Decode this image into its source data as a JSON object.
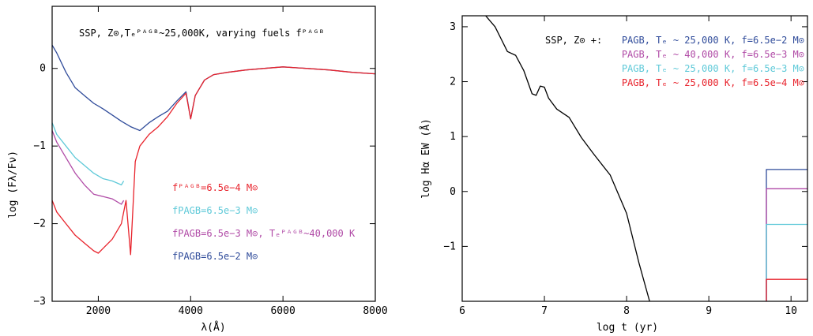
{
  "colors": {
    "red": "#e8232c",
    "cyan": "#5ec9d8",
    "purple": "#b04aa6",
    "blue": "#2f4b9a",
    "black": "#000000"
  },
  "chart_data": [
    {
      "type": "line",
      "title": "SSP, Z⊙,Tₑᴾᴬᴳᴮ~25,000K, varying fuels fᴾᴬᴳᴮ",
      "xlabel": "λ(Å)",
      "ylabel": "log (Fλ/Fν)",
      "xlim": [
        1000,
        8000
      ],
      "ylim": [
        -3,
        0.8
      ],
      "x_ticks": [
        2000,
        4000,
        6000,
        8000
      ],
      "x_tick_labels": [
        "2000",
        "4000",
        "6000",
        "8000"
      ],
      "y_ticks": [
        -3,
        -2,
        -1,
        0
      ],
      "y_tick_labels": [
        "−3",
        "−2",
        "−1",
        "0"
      ],
      "legend": [
        {
          "text": "fᴾᴬᴳᴮ=6.5e−4 M⊙",
          "color": "red"
        },
        {
          "text": "fPAGB=6.5e−3 M⊙",
          "color": "cyan"
        },
        {
          "text": "fPAGB=6.5e−3 M⊙, Tₑᴾᴬᴳᴮ~40,000 K",
          "color": "purple"
        },
        {
          "text": "fPAGB=6.5e−2 M⊙",
          "color": "blue"
        }
      ],
      "series": [
        {
          "color": "blue",
          "x": [
            1000,
            1100,
            1300,
            1500,
            1700,
            1900,
            2100,
            2300,
            2500,
            2700,
            2900,
            3100,
            3300,
            3500,
            3700,
            3900,
            4000,
            4100,
            4300,
            4500,
            4800,
            5200,
            5600,
            6000,
            6500,
            7000,
            7500,
            8000
          ],
          "y": [
            0.3,
            0.2,
            -0.05,
            -0.25,
            -0.35,
            -0.45,
            -0.52,
            -0.6,
            -0.68,
            -0.75,
            -0.8,
            -0.7,
            -0.62,
            -0.55,
            -0.42,
            -0.3,
            -0.65,
            -0.35,
            -0.15,
            -0.08,
            -0.05,
            -0.02,
            0.0,
            0.02,
            0.0,
            -0.02,
            -0.05,
            -0.07
          ]
        },
        {
          "color": "cyan",
          "x": [
            1000,
            1100,
            1300,
            1500,
            1700,
            1900,
            2100,
            2300,
            2500,
            2550
          ],
          "y": [
            -0.7,
            -0.85,
            -1.0,
            -1.15,
            -1.25,
            -1.35,
            -1.42,
            -1.45,
            -1.5,
            -1.45
          ]
        },
        {
          "color": "purple",
          "x": [
            1000,
            1100,
            1300,
            1500,
            1700,
            1900,
            2100,
            2300,
            2500,
            2550
          ],
          "y": [
            -0.8,
            -0.95,
            -1.15,
            -1.35,
            -1.5,
            -1.62,
            -1.65,
            -1.68,
            -1.75,
            -1.7
          ]
        },
        {
          "color": "red",
          "x": [
            1000,
            1100,
            1300,
            1500,
            1700,
            1900,
            2000,
            2100,
            2300,
            2500,
            2600,
            2700,
            2800,
            2900,
            3100,
            3300,
            3500,
            3700,
            3900,
            4000,
            4100,
            4300,
            4500,
            4800,
            5200,
            5600,
            6000,
            6500,
            7000,
            7500,
            8000
          ],
          "y": [
            -1.7,
            -1.85,
            -2.0,
            -2.15,
            -2.25,
            -2.35,
            -2.38,
            -2.32,
            -2.2,
            -2.0,
            -1.7,
            -2.4,
            -1.2,
            -1.0,
            -0.85,
            -0.75,
            -0.62,
            -0.45,
            -0.32,
            -0.65,
            -0.35,
            -0.15,
            -0.08,
            -0.05,
            -0.02,
            0.0,
            0.02,
            0.0,
            -0.02,
            -0.05,
            -0.07
          ]
        }
      ]
    },
    {
      "type": "line",
      "xlabel": "log t (yr)",
      "ylabel": "log Hα EW (Å)",
      "xlim": [
        6,
        10.2
      ],
      "ylim": [
        -2,
        3.2
      ],
      "x_ticks": [
        6,
        7,
        8,
        9,
        10
      ],
      "x_tick_labels": [
        "6",
        "7",
        "8",
        "9",
        "10"
      ],
      "y_ticks": [
        -1,
        0,
        1,
        2,
        3
      ],
      "y_tick_labels": [
        "−1",
        "0",
        "1",
        "2",
        "3"
      ],
      "legend_prefix": "SSP, Z⊙ +:",
      "legend": [
        {
          "text": "PAGB, Tₑ ~ 25,000 K, f=6.5e−2 M⊙",
          "color": "blue"
        },
        {
          "text": "PAGB, Tₑ ~ 40,000 K, f=6.5e−3 M⊙",
          "color": "purple"
        },
        {
          "text": "PAGB, Tₑ ~ 25,000 K, f=6.5e−3 M⊙",
          "color": "cyan"
        },
        {
          "text": "PAGB, Tₑ ~ 25,000 K, f=6.5e−4 M⊙",
          "color": "red"
        }
      ],
      "series": [
        {
          "color": "black",
          "x": [
            6.0,
            6.2,
            6.4,
            6.55,
            6.65,
            6.75,
            6.85,
            6.9,
            6.95,
            7.0,
            7.05,
            7.15,
            7.3,
            7.45,
            7.6,
            7.8,
            8.0,
            8.15,
            8.28
          ],
          "y": [
            3.5,
            3.35,
            3.0,
            2.55,
            2.48,
            2.2,
            1.78,
            1.75,
            1.92,
            1.9,
            1.7,
            1.5,
            1.35,
            0.98,
            0.68,
            0.3,
            -0.4,
            -1.3,
            -2.0
          ]
        },
        {
          "color": "blue",
          "x": [
            9.7,
            9.7,
            10.2
          ],
          "y": [
            -2.0,
            0.4,
            0.4
          ]
        },
        {
          "color": "purple",
          "x": [
            9.7,
            9.7,
            10.2
          ],
          "y": [
            -2.0,
            0.05,
            0.05
          ]
        },
        {
          "color": "cyan",
          "x": [
            9.7,
            9.7,
            10.2
          ],
          "y": [
            -2.0,
            -0.6,
            -0.6
          ]
        },
        {
          "color": "red",
          "x": [
            9.7,
            9.7,
            10.2
          ],
          "y": [
            -2.0,
            -1.6,
            -1.6
          ]
        }
      ]
    }
  ]
}
